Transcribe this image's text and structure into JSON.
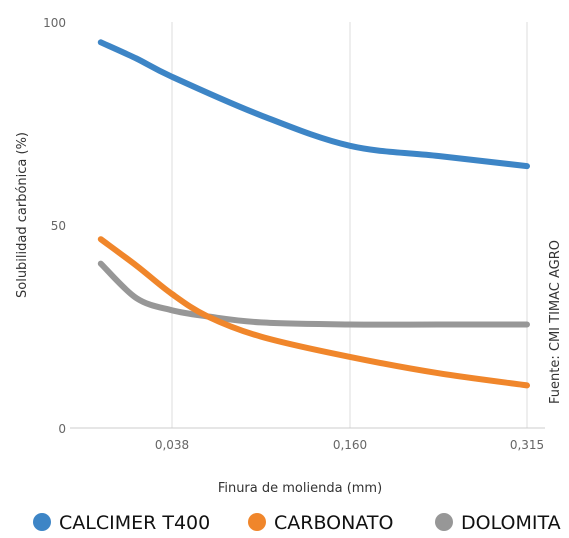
{
  "chart_data": {
    "type": "line",
    "xlabel": "Finura de molienda (mm)",
    "ylabel": "Solubilidad carbónica (%)",
    "categories": [
      "0,038",
      "0,160",
      "0,315"
    ],
    "ylim": [
      0,
      100
    ],
    "yticks": [
      "0",
      "50",
      "100"
    ],
    "grid": "vertical",
    "legend_position": "bottom",
    "source_note": "Fuente: CMI TIMAC AGRO",
    "x_domain": [
      -0.4,
      2.0
    ],
    "series": [
      {
        "name": "CALCIMER T400",
        "color": "#3d85c6",
        "x": [
          -0.4,
          -0.2,
          0.0,
          0.5,
          1.0,
          1.5,
          2.0
        ],
        "y": [
          95,
          91,
          86.5,
          77,
          69.5,
          67,
          64.5
        ]
      },
      {
        "name": "CARBONATO",
        "color": "#f0862b",
        "x": [
          -0.4,
          -0.2,
          0.0,
          0.2,
          0.5,
          1.0,
          1.5,
          2.0
        ],
        "y": [
          46.5,
          40,
          33,
          27.5,
          22.5,
          17.5,
          13.5,
          10.5
        ]
      },
      {
        "name": "DOLOMITA",
        "color": "#979797",
        "x": [
          -0.4,
          -0.2,
          0.0,
          0.2,
          0.5,
          1.0,
          1.5,
          2.0
        ],
        "y": [
          40.5,
          32,
          29,
          27.5,
          26,
          25.5,
          25.5,
          25.5
        ]
      }
    ]
  }
}
